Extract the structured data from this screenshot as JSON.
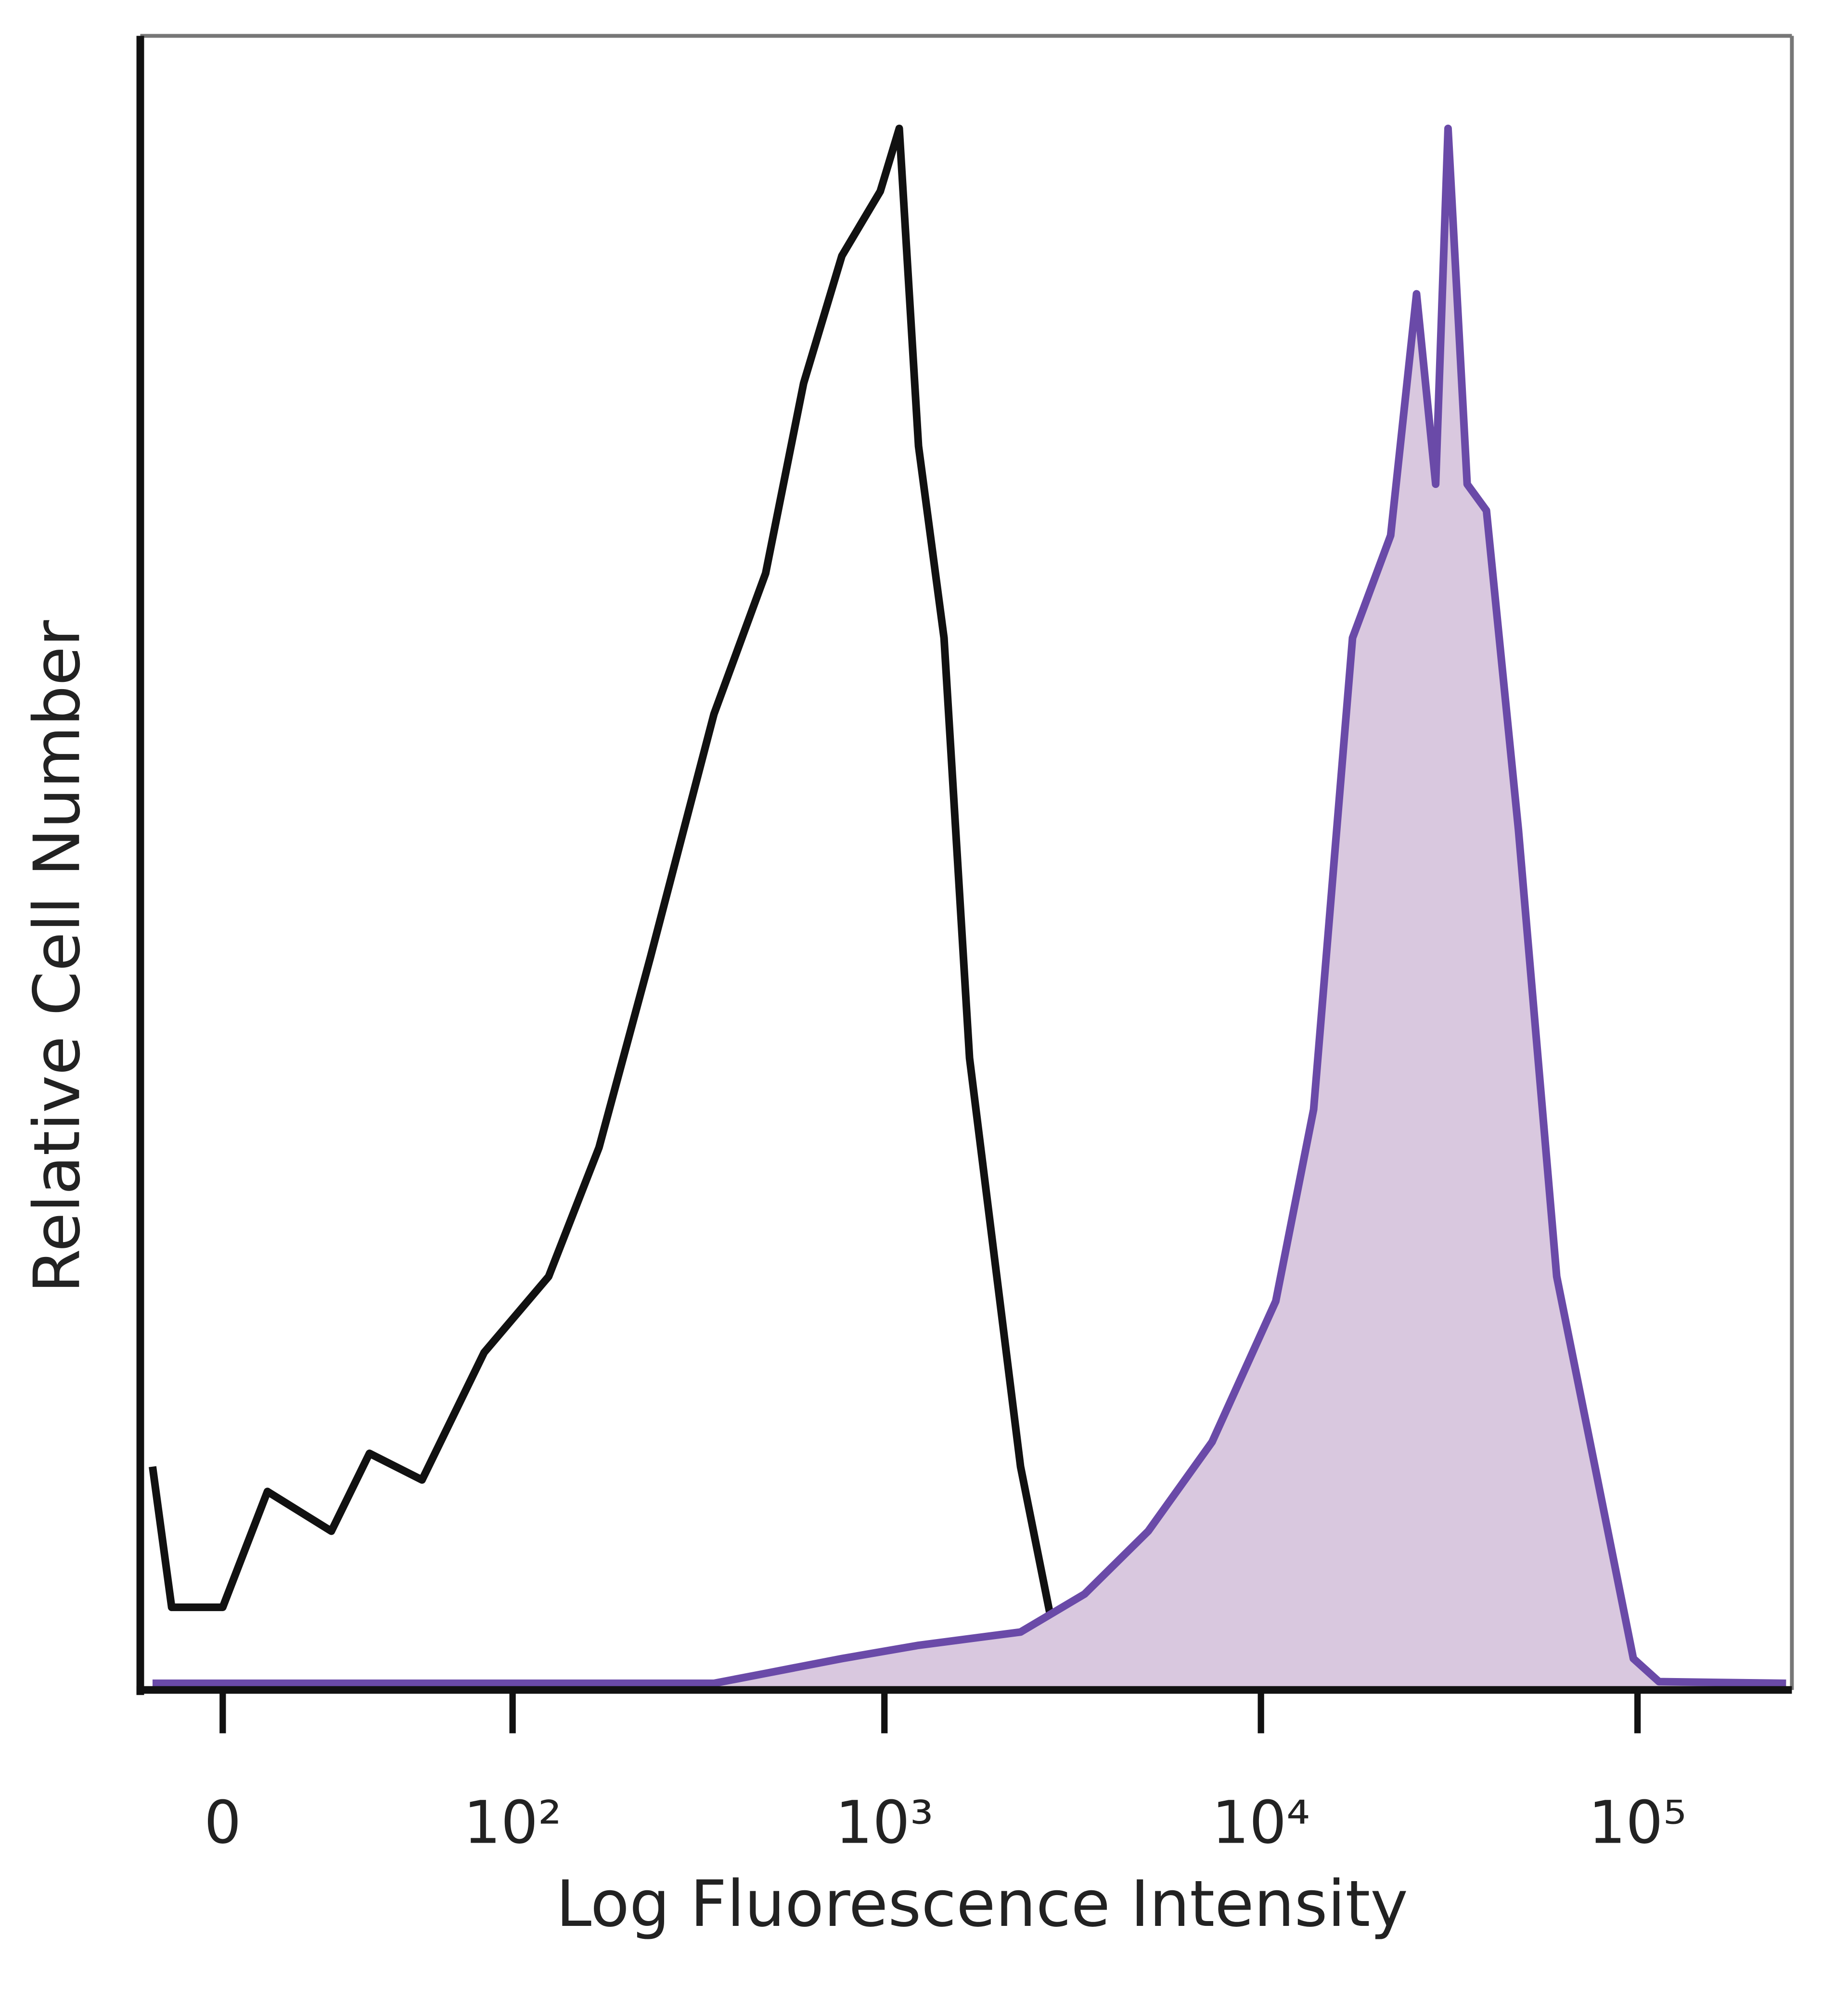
{
  "chart_data": {
    "type": "histogram-line",
    "x_label": "Log Fluorescence Intensity",
    "y_label": "Relative Cell Number",
    "xscale": "asinh",
    "xlim": [
      -18.4,
      257000
    ],
    "ylim": [
      0,
      100
    ],
    "xticks": [
      0,
      {
        "value": 100,
        "label": "10²"
      },
      {
        "value": 1000,
        "label": "10³"
      },
      {
        "value": 10000,
        "label": "10⁴"
      },
      {
        "value": 100000,
        "label": "10⁵"
      }
    ],
    "series": [
      {
        "color": "#111111",
        "fill": null,
        "x": [
          -15.5,
          -11.1,
          0,
          9.7,
          25,
          35.8,
          54,
          83,
          126,
          173,
          238,
          352,
          483,
          610,
          771,
          975,
          1095,
          1232,
          1440,
          1683,
          2299,
          2907,
          3971,
          7420,
          23900,
          248000
        ],
        "values": [
          13.5,
          5,
          5,
          12,
          9.6,
          14.3,
          12.7,
          20.4,
          25,
          32.8,
          44.3,
          59,
          67.5,
          79,
          86.7,
          90.6,
          94.4,
          75.2,
          63.6,
          38.2,
          13.5,
          1.9,
          0.8,
          0.5,
          0.4,
          0.4
        ]
      },
      {
        "color": "#6a4aa8",
        "fill": "#d9c8df",
        "x": [
          -15.5,
          352,
          483,
          771,
          1232,
          2299,
          3400,
          5020,
          7420,
          10950,
          13800,
          17500,
          22100,
          25900,
          29100,
          31400,
          35300,
          39700,
          48300,
          61000,
          77100,
          97500,
          114000,
          248000
        ],
        "values": [
          0.4,
          0.4,
          1,
          1.9,
          2.7,
          3.5,
          5.8,
          9.6,
          15,
          23.5,
          35.1,
          63.6,
          69.8,
          84.4,
          72.9,
          94.4,
          72.9,
          71.3,
          52,
          25,
          13.5,
          1.9,
          0.5,
          0.4
        ]
      }
    ]
  }
}
